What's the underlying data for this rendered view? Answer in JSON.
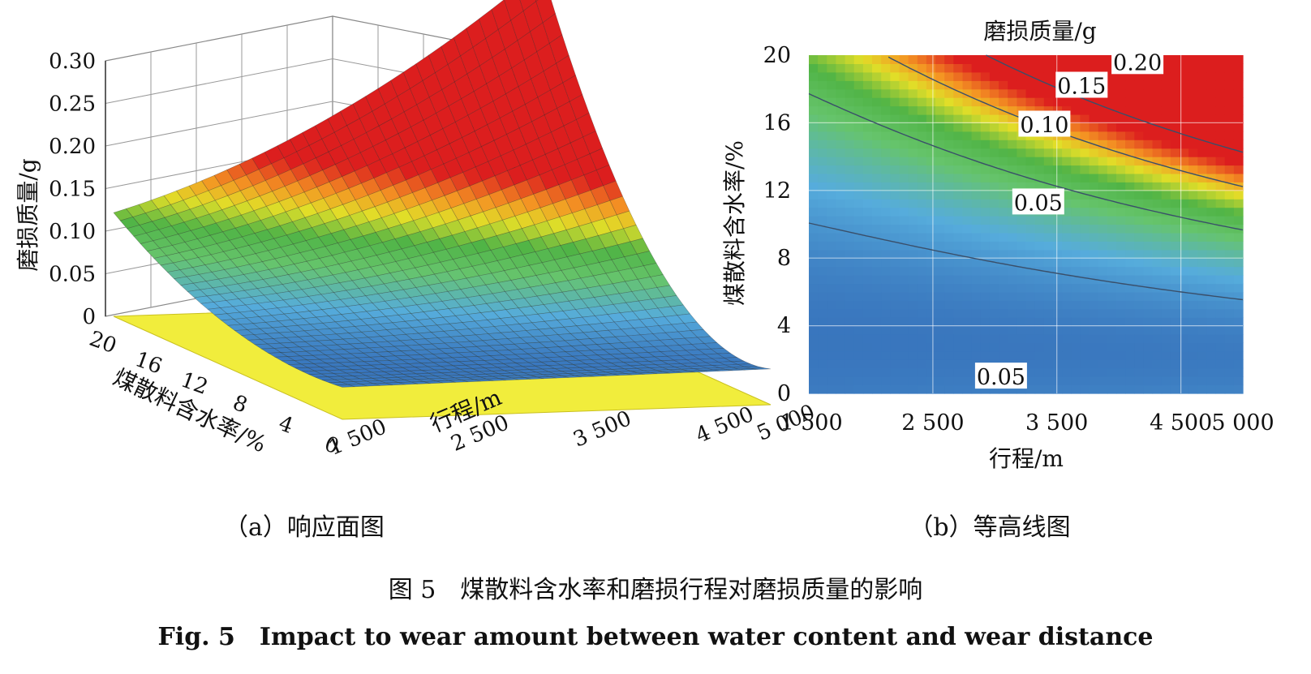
{
  "figure": {
    "caption_cn": "图 5　煤散料含水率和磨损行程对磨损质量的影响",
    "caption_en": "Fig. 5　Impact to wear amount between water content and wear distance"
  },
  "chart_data": [
    {
      "type": "surface3d",
      "subcaption": "（a）响应面图",
      "xlabel": "行程/m",
      "ylabel": "煤散料含水率/%",
      "zlabel": "磨损质量/g",
      "x_ticks": [
        "1 500",
        "2 500",
        "3 500",
        "4 500",
        "5 000"
      ],
      "x_tick_values": [
        1500,
        2500,
        3500,
        4500,
        5000
      ],
      "y_ticks": [
        "20",
        "16",
        "12",
        "8",
        "4",
        "0"
      ],
      "y_tick_values": [
        20,
        16,
        12,
        8,
        4,
        0
      ],
      "z_ticks": [
        "0",
        "0.05",
        "0.10",
        "0.15",
        "0.20",
        "0.25",
        "0.30"
      ],
      "z_tick_values": [
        0,
        0.05,
        0.1,
        0.15,
        0.2,
        0.25,
        0.3
      ],
      "xlim": [
        1500,
        5000
      ],
      "ylim": [
        0,
        20
      ],
      "zlim": [
        0,
        0.3
      ],
      "floor_color": "#f1ed3c",
      "corner_values": [
        {
          "x": 1500,
          "y": 20,
          "z": 0.1
        },
        {
          "x": 5000,
          "y": 20,
          "z": 0.29
        },
        {
          "x": 1500,
          "y": 0,
          "z": 0.01
        },
        {
          "x": 5000,
          "y": 0,
          "z": 0.03
        }
      ]
    },
    {
      "type": "heatmap",
      "subcaption": "（b）等高线图",
      "title": "磨损质量/g",
      "xlabel": "行程/m",
      "ylabel": "煤散料含水率/%",
      "x_ticks": [
        "1 500",
        "2 500",
        "3 500",
        "4 500",
        "5 000"
      ],
      "x_tick_values": [
        1500,
        2500,
        3500,
        4500,
        5000
      ],
      "y_ticks": [
        "0",
        "4",
        "8",
        "12",
        "16",
        "20"
      ],
      "y_tick_values": [
        0,
        4,
        8,
        12,
        16,
        20
      ],
      "xlim": [
        1500,
        5000
      ],
      "ylim": [
        0,
        20
      ],
      "contour_levels": [
        0.05,
        0.1,
        0.15,
        0.2
      ],
      "contour_labels": [
        {
          "text": "0.20",
          "x": 4150,
          "y": 19.6
        },
        {
          "text": "0.15",
          "x": 3700,
          "y": 18.2
        },
        {
          "text": "0.10",
          "x": 3400,
          "y": 15.9
        },
        {
          "text": "0.05",
          "x": 3350,
          "y": 11.3
        },
        {
          "text": "0.05",
          "x": 3050,
          "y": 1.0
        }
      ]
    }
  ]
}
